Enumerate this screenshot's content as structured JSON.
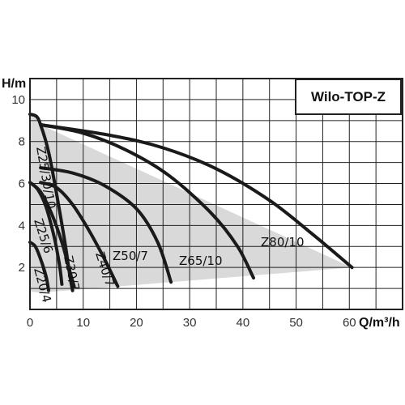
{
  "chart_data": {
    "type": "line",
    "title": "Wilo-TOP-Z",
    "xlabel": "Q/m³/h",
    "ylabel": "H/m",
    "xlim": [
      0,
      70
    ],
    "ylim": [
      0,
      11
    ],
    "x_ticks": [
      "0",
      "10",
      "20",
      "30",
      "40",
      "50",
      "60"
    ],
    "y_ticks": [
      "2",
      "4",
      "6",
      "8",
      "10"
    ],
    "grid": true,
    "envelope": [
      [
        0,
        9.3
      ],
      [
        1.2,
        9.2
      ],
      [
        2,
        8.8
      ],
      [
        60.5,
        2.0
      ],
      [
        60.5,
        2.0
      ],
      [
        2,
        0.8
      ],
      [
        0,
        0.85
      ]
    ],
    "series": [
      {
        "name": "Z20/4",
        "points": [
          [
            0,
            3.2
          ],
          [
            1,
            3.0
          ],
          [
            2,
            2.4
          ],
          [
            3,
            1.6
          ],
          [
            3.5,
            0.9
          ]
        ]
      },
      {
        "name": "Z25/6",
        "points": [
          [
            0,
            6.05
          ],
          [
            1.5,
            5.7
          ],
          [
            3,
            4.9
          ],
          [
            4.5,
            3.5
          ],
          [
            5.5,
            2.2
          ],
          [
            6,
            1.2
          ]
        ]
      },
      {
        "name": "Z30/7",
        "points": [
          [
            0,
            6.05
          ],
          [
            2,
            5.6
          ],
          [
            4,
            4.6
          ],
          [
            6,
            3.2
          ],
          [
            7.5,
            1.8
          ],
          [
            8.3,
            1.1
          ]
        ]
      },
      {
        "name": "Z25/30/10",
        "points": [
          [
            0,
            9.3
          ],
          [
            1.2,
            9.2
          ],
          [
            2,
            8.8
          ],
          [
            3.5,
            7.5
          ],
          [
            5,
            5.5
          ],
          [
            6.5,
            3.3
          ],
          [
            7.5,
            1.6
          ],
          [
            8,
            0.9
          ]
        ]
      },
      {
        "name": "Z40/7",
        "points": [
          [
            2,
            6.05
          ],
          [
            5,
            5.8
          ],
          [
            8,
            5.0
          ],
          [
            11,
            3.8
          ],
          [
            14,
            2.4
          ],
          [
            16.5,
            1.1
          ]
        ]
      },
      {
        "name": "Z50/7",
        "points": [
          [
            2,
            6.75
          ],
          [
            8,
            6.5
          ],
          [
            14,
            5.9
          ],
          [
            20,
            4.8
          ],
          [
            24,
            3.2
          ],
          [
            26.5,
            1.3
          ]
        ]
      },
      {
        "name": "Z65/10",
        "points": [
          [
            2,
            8.8
          ],
          [
            10,
            8.4
          ],
          [
            18,
            7.6
          ],
          [
            26,
            6.4
          ],
          [
            34,
            4.6
          ],
          [
            39,
            3.0
          ],
          [
            42,
            1.5
          ]
        ]
      },
      {
        "name": "Z80/10",
        "points": [
          [
            2,
            8.8
          ],
          [
            15,
            8.3
          ],
          [
            25,
            7.7
          ],
          [
            35,
            6.7
          ],
          [
            45,
            5.2
          ],
          [
            53,
            3.6
          ],
          [
            60.5,
            2.0
          ]
        ]
      }
    ],
    "curve_labels": [
      "Z20/4",
      "Z25/6",
      "Z30/7",
      "Z25/30/10",
      "Z40/7",
      "Z50/7",
      "Z65/10",
      "Z80/10"
    ],
    "colors": {
      "curve": "#1a1a1a",
      "envelope": "#d9d9d9",
      "grid": "#222222",
      "background": "#ffffff"
    }
  }
}
